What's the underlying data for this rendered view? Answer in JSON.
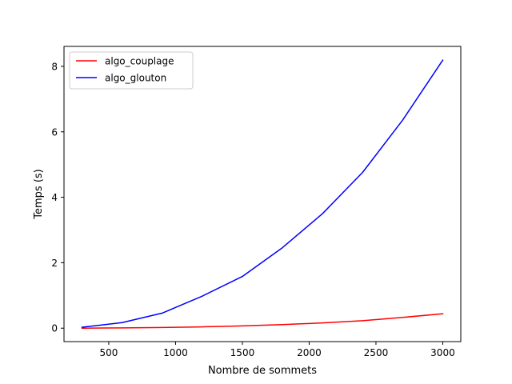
{
  "chart_data": {
    "type": "line",
    "title": "",
    "xlabel": "Nombre de sommets",
    "ylabel": "Temps (s)",
    "xlim": [
      165,
      3135
    ],
    "ylim": [
      -0.41,
      8.61
    ],
    "xticks": [
      500,
      1000,
      1500,
      2000,
      2500,
      3000
    ],
    "yticks": [
      0,
      2,
      4,
      6,
      8
    ],
    "grid": false,
    "legend_position": "top-left",
    "x": [
      300,
      600,
      900,
      1200,
      1500,
      1800,
      2100,
      2400,
      2700,
      3000
    ],
    "series": [
      {
        "name": "algo_couplage",
        "color": "#ff0000",
        "values": [
          0.0,
          0.01,
          0.02,
          0.04,
          0.07,
          0.11,
          0.16,
          0.23,
          0.33,
          0.44
        ]
      },
      {
        "name": "algo_glouton",
        "color": "#0000ff",
        "values": [
          0.03,
          0.17,
          0.46,
          0.98,
          1.58,
          2.46,
          3.5,
          4.76,
          6.36,
          8.19
        ]
      }
    ]
  }
}
